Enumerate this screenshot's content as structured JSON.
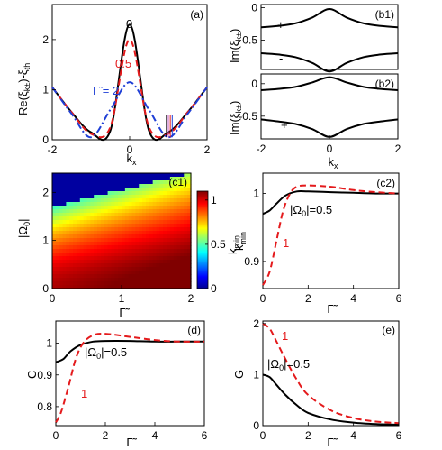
{
  "chart_data": [
    {
      "id": "a",
      "type": "line",
      "panel_label": "(a)",
      "xlabel": "k_x",
      "ylabel": "Re(ξ_k±)-ξ_th",
      "xlim": [
        -2,
        2
      ],
      "ylim": [
        0,
        2.7
      ],
      "xticks": [
        "-2",
        "0",
        "2"
      ],
      "yticks": [
        "0",
        "1",
        "2"
      ],
      "series": [
        {
          "color": "#000000",
          "style": "solid",
          "x": [
            -2,
            -1.5,
            -1,
            -0.5,
            0,
            0.5,
            1,
            1.5,
            2
          ],
          "y": [
            1.05,
            0.55,
            0.15,
            0.18,
            2.3,
            0.18,
            0.15,
            0.55,
            1.05
          ]
        },
        {
          "color": "#e41a1c",
          "style": "dashed",
          "x": [
            -2,
            -1.5,
            -1,
            -0.5,
            0,
            0.5,
            1,
            1.5,
            2
          ],
          "y": [
            1.05,
            0.55,
            0.12,
            0.25,
            2.0,
            0.25,
            0.12,
            0.55,
            1.05
          ]
        },
        {
          "color": "#1f3fd6",
          "style": "dashdot",
          "x": [
            -2,
            -1.5,
            -1,
            -0.5,
            0,
            0.5,
            1,
            1.5,
            2
          ],
          "y": [
            1.05,
            0.52,
            0.05,
            0.6,
            1.15,
            0.6,
            0.05,
            0.52,
            1.05
          ]
        }
      ],
      "annotations": [
        {
          "text": "0",
          "color": "#000000"
        },
        {
          "text": "0.5",
          "color": "#e41a1c"
        },
        {
          "text": "Γ̃ = 2",
          "color": "#1f3fd6"
        }
      ]
    },
    {
      "id": "b1",
      "type": "line",
      "panel_label": "(b1)",
      "ylabel": "Im(ξ_k±)",
      "xlim": [
        -2,
        2
      ],
      "ylim": [
        -0.95,
        0.05
      ],
      "yticks": [
        "0",
        "-0.5"
      ],
      "series": [
        {
          "color": "#000000",
          "style": "solid",
          "x": [
            -2,
            -1.5,
            -1,
            -0.5,
            0,
            0.5,
            1,
            1.5,
            2
          ],
          "y": [
            -0.3,
            -0.28,
            -0.24,
            -0.15,
            -0.02,
            -0.15,
            -0.24,
            -0.28,
            -0.3
          ]
        },
        {
          "color": "#000000",
          "style": "solid",
          "x": [
            -2,
            -1.5,
            -1,
            -0.5,
            0,
            0.5,
            1,
            1.5,
            2
          ],
          "y": [
            -0.7,
            -0.72,
            -0.76,
            -0.85,
            -0.98,
            -0.85,
            -0.76,
            -0.72,
            -0.7
          ]
        }
      ],
      "annotations": [
        {
          "text": "+"
        },
        {
          "text": "-"
        }
      ]
    },
    {
      "id": "b2",
      "type": "line",
      "panel_label": "(b2)",
      "xlabel": "k_x",
      "ylabel": "Im(ξ_k±)",
      "xlim": [
        -2,
        2
      ],
      "ylim": [
        -0.85,
        0.15
      ],
      "xticks": [
        "-2",
        "0",
        "2"
      ],
      "yticks": [
        "0",
        "-0.5"
      ],
      "series": [
        {
          "color": "#000000",
          "style": "solid",
          "x": [
            -2,
            -1.5,
            -1,
            -0.5,
            0,
            0.5,
            1,
            1.5,
            2
          ],
          "y": [
            -0.1,
            -0.08,
            -0.05,
            0.02,
            0.1,
            0.02,
            -0.05,
            -0.08,
            -0.1
          ]
        },
        {
          "color": "#000000",
          "style": "solid",
          "x": [
            -2,
            -1.5,
            -1,
            -0.5,
            0,
            0.5,
            1,
            1.5,
            2
          ],
          "y": [
            -0.55,
            -0.58,
            -0.62,
            -0.7,
            -0.82,
            -0.7,
            -0.62,
            -0.58,
            -0.55
          ]
        }
      ],
      "annotations": [
        {
          "text": "-"
        },
        {
          "text": "+"
        }
      ]
    },
    {
      "id": "c1",
      "type": "heatmap",
      "panel_label": "(c1)",
      "xlabel": "Γ̃",
      "ylabel": "|Ω_0|",
      "xlim": [
        0,
        2
      ],
      "ylim": [
        0,
        2.4
      ],
      "xticks": [
        "0",
        "1",
        "2"
      ],
      "yticks": [
        "0",
        "1",
        "2"
      ],
      "colorbar": {
        "label": "k_min",
        "ticks": [
          "0",
          "0.5",
          "1"
        ],
        "range": [
          0,
          1.1
        ]
      }
    },
    {
      "id": "c2",
      "type": "line",
      "panel_label": "(c2)",
      "xlabel": "Γ̃",
      "ylabel": "k_min",
      "xlim": [
        0,
        6
      ],
      "ylim": [
        0.86,
        1.03
      ],
      "xticks": [
        "0",
        "2",
        "4",
        "6"
      ],
      "yticks": [
        "0.9",
        "1"
      ],
      "series": [
        {
          "color": "#000000",
          "style": "solid",
          "x": [
            0,
            0.3,
            0.6,
            1,
            1.5,
            2,
            3,
            4,
            5,
            6
          ],
          "y": [
            0.97,
            0.975,
            0.985,
            0.997,
            1.003,
            1.003,
            1.002,
            1.001,
            1.0,
            1.0
          ]
        },
        {
          "color": "#e41a1c",
          "style": "dashed",
          "x": [
            0,
            0.3,
            0.6,
            0.9,
            1.2,
            1.5,
            2,
            3,
            4,
            5,
            6
          ],
          "y": [
            0.865,
            0.885,
            0.93,
            0.975,
            1.0,
            1.01,
            1.012,
            1.01,
            1.005,
            1.002,
            1.0
          ]
        }
      ],
      "annotations": [
        {
          "text": "|Ω_0|=0.5",
          "color": "#000000"
        },
        {
          "text": "1",
          "color": "#e41a1c"
        }
      ]
    },
    {
      "id": "d",
      "type": "line",
      "panel_label": "(d)",
      "xlabel": "Γ̃",
      "ylabel": "C",
      "xlim": [
        0,
        6
      ],
      "ylim": [
        0.74,
        1.07
      ],
      "xticks": [
        "0",
        "2",
        "4",
        "6"
      ],
      "yticks": [
        "0.8",
        "0.9",
        "1"
      ],
      "series": [
        {
          "color": "#000000",
          "style": "solid",
          "x": [
            0,
            0.3,
            0.6,
            1,
            1.5,
            2,
            3,
            4,
            5,
            6
          ],
          "y": [
            0.94,
            0.95,
            0.975,
            0.995,
            1.005,
            1.007,
            1.007,
            1.005,
            1.005,
            1.005
          ]
        },
        {
          "color": "#e41a1c",
          "style": "dashed",
          "x": [
            0,
            0.2,
            0.5,
            0.8,
            1.1,
            1.5,
            2,
            3,
            4,
            5,
            6
          ],
          "y": [
            0.75,
            0.78,
            0.86,
            0.95,
            1.0,
            1.025,
            1.03,
            1.02,
            1.01,
            1.005,
            1.005
          ]
        }
      ],
      "annotations": [
        {
          "text": "|Ω_0|=0.5",
          "color": "#000000"
        },
        {
          "text": "1",
          "color": "#e41a1c"
        }
      ]
    },
    {
      "id": "e",
      "type": "line",
      "panel_label": "(e)",
      "xlabel": "Γ̃",
      "ylabel": "G",
      "xlim": [
        0,
        6
      ],
      "ylim": [
        0,
        2.05
      ],
      "xticks": [
        "0",
        "2",
        "4",
        "6"
      ],
      "yticks": [
        "0",
        "1",
        "2"
      ],
      "series": [
        {
          "color": "#000000",
          "style": "solid",
          "x": [
            0,
            0.3,
            0.6,
            1,
            1.5,
            2,
            3,
            4,
            5,
            6
          ],
          "y": [
            1.0,
            0.95,
            0.8,
            0.6,
            0.4,
            0.25,
            0.12,
            0.06,
            0.03,
            0.02
          ]
        },
        {
          "color": "#e41a1c",
          "style": "dashed",
          "x": [
            0,
            0.3,
            0.6,
            1,
            1.5,
            2,
            3,
            4,
            5,
            6
          ],
          "y": [
            2.0,
            1.9,
            1.65,
            1.3,
            0.9,
            0.6,
            0.3,
            0.15,
            0.08,
            0.05
          ]
        }
      ],
      "annotations": [
        {
          "text": "|Ω_0|=0.5",
          "color": "#000000"
        },
        {
          "text": "1",
          "color": "#e41a1c"
        }
      ]
    }
  ]
}
